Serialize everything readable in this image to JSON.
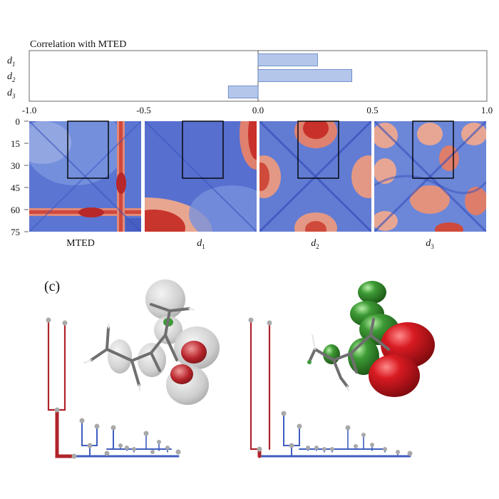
{
  "chart_data": [
    {
      "type": "bar",
      "orientation": "horizontal",
      "title": "Correlation with MTED",
      "categories": [
        "d1",
        "d2",
        "d3"
      ],
      "category_labels": [
        {
          "base": "d",
          "sub": "1"
        },
        {
          "base": "d",
          "sub": "2"
        },
        {
          "base": "d",
          "sub": "3"
        }
      ],
      "values": [
        0.26,
        0.41,
        -0.13
      ],
      "xlim": [
        -1.0,
        1.0
      ],
      "xticks": [
        "-1.0",
        "-0.5",
        "0.0",
        "0.5",
        "1.0"
      ],
      "xtick_values": [
        -1.0,
        -0.5,
        0.0,
        0.5,
        1.0
      ],
      "bar_color": "#b4c7ea",
      "bar_edge": "#5b7fc4",
      "grid": false
    },
    {
      "type": "heatmap",
      "panels": [
        {
          "id": "MTED",
          "label_base": "MTED",
          "label_sub": ""
        },
        {
          "id": "d1",
          "label_base": "d",
          "label_sub": "1"
        },
        {
          "id": "d2",
          "label_base": "d",
          "label_sub": "2"
        },
        {
          "id": "d3",
          "label_base": "d",
          "label_sub": "3"
        }
      ],
      "yticks": [
        "0",
        "15",
        "30",
        "45",
        "60",
        "75"
      ],
      "ytick_values": [
        0,
        15,
        30,
        45,
        60,
        75
      ],
      "grid_size": 75,
      "highlight_box": {
        "x": [
          12,
          39
        ],
        "y": [
          0,
          39
        ]
      },
      "colormap": {
        "low": "#4a63c9",
        "mid": "#e6e0dc",
        "high": "#c62b26"
      }
    }
  ],
  "panel_c": {
    "label": "(c)",
    "colors": {
      "red_branch": "#b1232a",
      "blue_branch": "#3f5cbf",
      "node": "#a9a9a9",
      "lobe_grey": "#c9c9c9",
      "lobe_red": "#c0161c",
      "lobe_green": "#3f9a3a",
      "bond": "#7a7a7a"
    }
  }
}
